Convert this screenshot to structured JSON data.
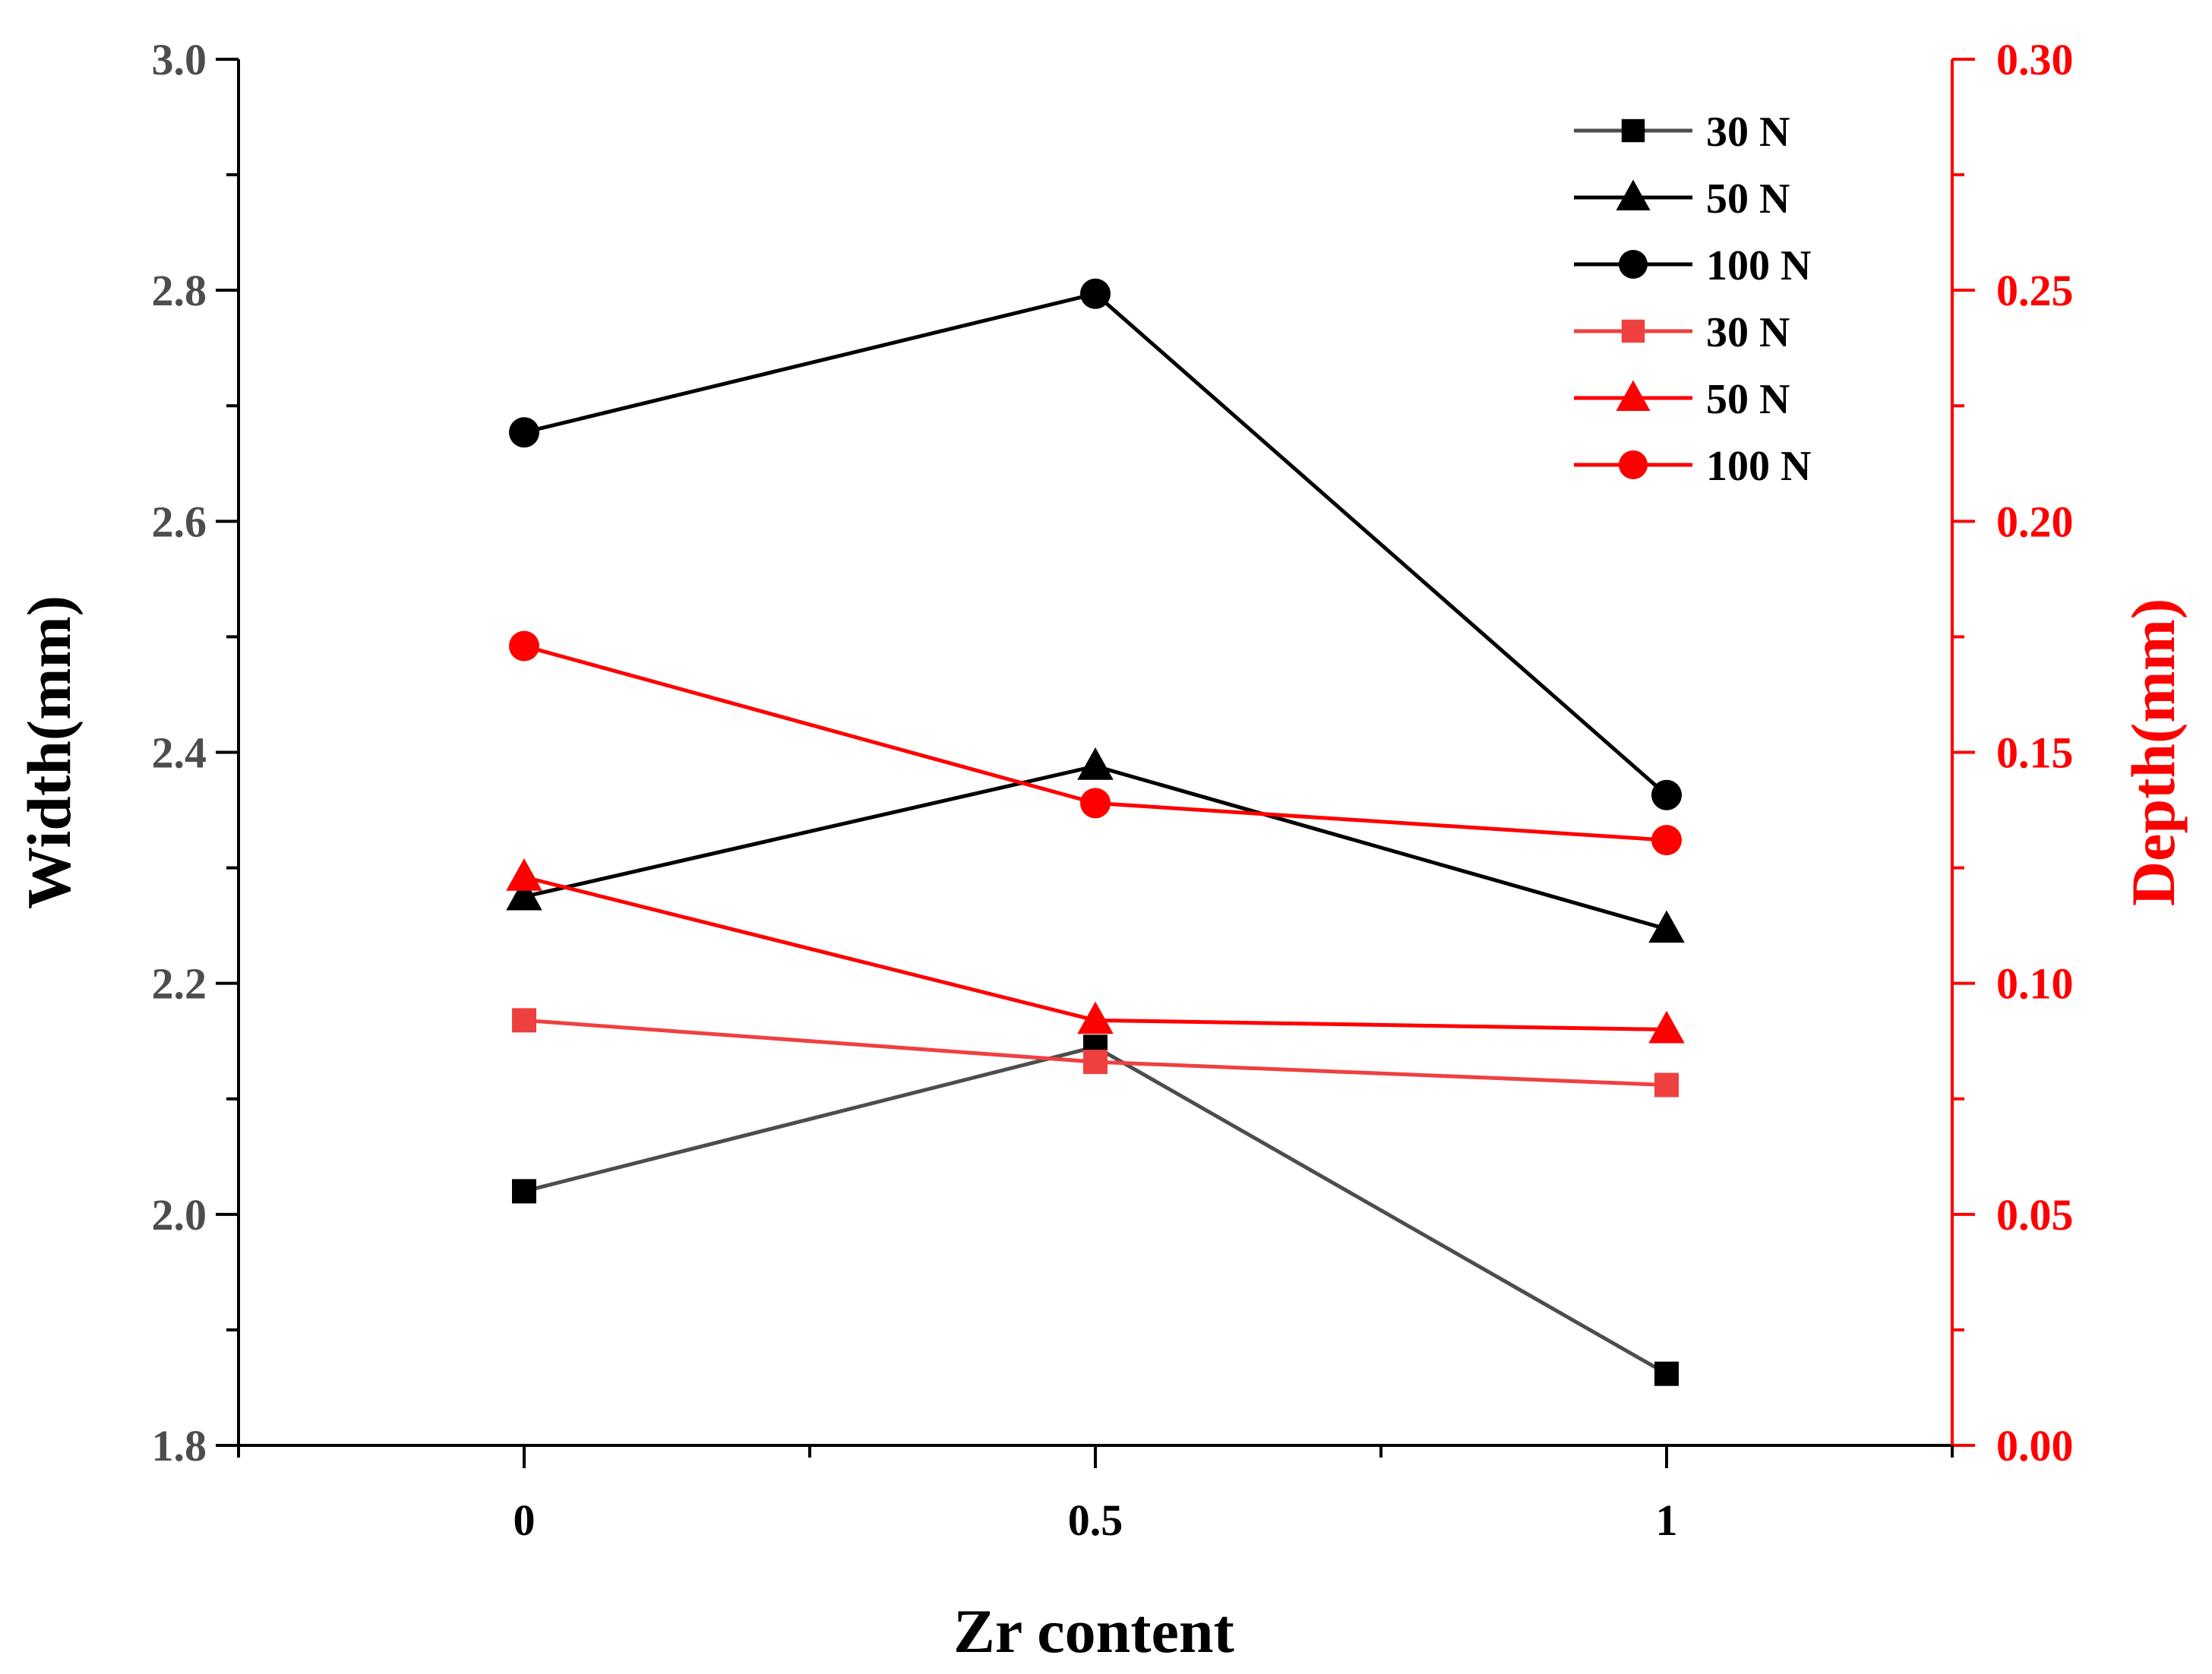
{
  "chart_data": {
    "type": "line",
    "x": [
      0,
      0.5,
      1
    ],
    "x_tick_labels": [
      "0",
      "0.5",
      "1"
    ],
    "xlabel": "Zr content",
    "xlim": [
      -0.25,
      1.25
    ],
    "ylabel_left": "Width(mm)",
    "ylim_left": [
      1.8,
      3.0
    ],
    "y_ticks_left": [
      "1.8",
      "2.0",
      "2.2",
      "2.4",
      "2.6",
      "2.8",
      "3.0"
    ],
    "ylabel_right": "Depth(mm)",
    "ylim_right": [
      0.0,
      0.3
    ],
    "y_ticks_right": [
      "0.00",
      "0.05",
      "0.10",
      "0.15",
      "0.20",
      "0.25",
      "0.30"
    ],
    "legend_position": "top-right",
    "series": [
      {
        "name": "30 N",
        "axis": "left",
        "marker": "square",
        "color": "#000000",
        "line_color": "#4d4d4d",
        "values": [
          2.02,
          2.145,
          1.862
        ]
      },
      {
        "name": "50 N",
        "axis": "left",
        "marker": "triangle",
        "color": "#000000",
        "line_color": "#000000",
        "values": [
          2.275,
          2.388,
          2.247
        ]
      },
      {
        "name": "100 N",
        "axis": "left",
        "marker": "circle",
        "color": "#000000",
        "line_color": "#000000",
        "values": [
          2.677,
          2.797,
          2.363
        ]
      },
      {
        "name": "30 N",
        "axis": "right",
        "marker": "square",
        "color": "#ef4040",
        "line_color": "#ef4040",
        "values": [
          0.092,
          0.083,
          0.078
        ]
      },
      {
        "name": "50 N",
        "axis": "right",
        "marker": "triangle",
        "color": "#ff0000",
        "line_color": "#ff0000",
        "values": [
          0.123,
          0.092,
          0.09
        ]
      },
      {
        "name": "100 N",
        "axis": "right",
        "marker": "circle",
        "color": "#ff0000",
        "line_color": "#ff0000",
        "values": [
          0.173,
          0.139,
          0.131
        ]
      }
    ]
  }
}
